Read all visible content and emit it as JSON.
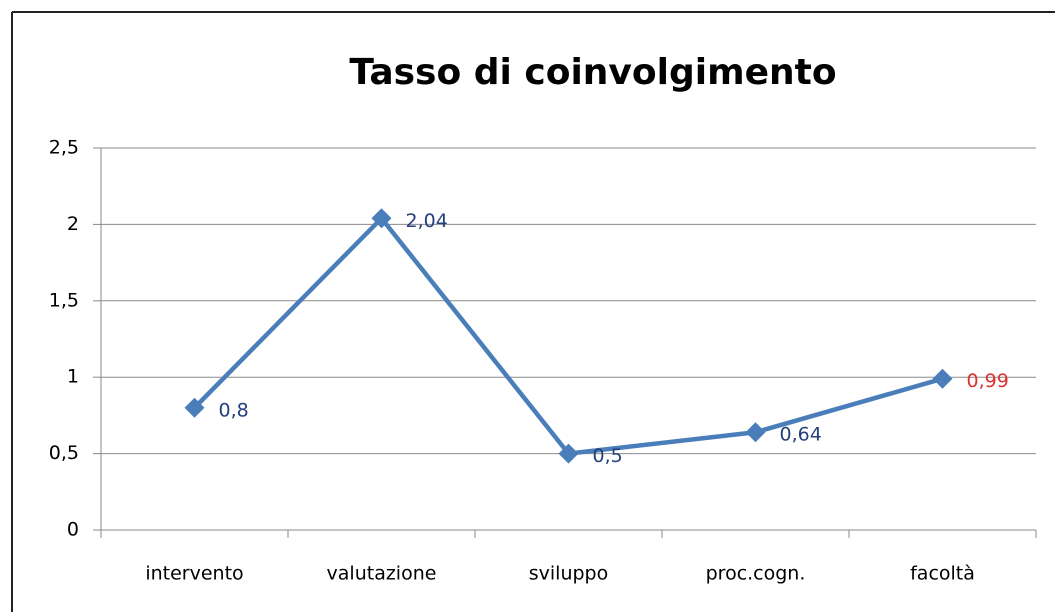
{
  "chart_data": {
    "type": "line",
    "title": "Tasso di coinvolgimento",
    "categories": [
      "intervento",
      "valutazione",
      "sviluppo",
      "proc.cogn.",
      "facoltà"
    ],
    "series": [
      {
        "name": "Tasso di coinvolgimento",
        "color": "#4a7ebb",
        "values": [
          0.8,
          2.04,
          0.5,
          0.64,
          0.99
        ],
        "value_labels": [
          "0,8",
          "2,04",
          "0,5",
          "0,64",
          "0,99"
        ],
        "value_label_colors": [
          "#243f7a",
          "#243f7a",
          "#243f7a",
          "#243f7a",
          "#e03030"
        ]
      }
    ],
    "ylim": [
      0,
      2.5
    ],
    "yticks": [
      0,
      {
        "value": 0.5,
        "label": "0,5"
      },
      1,
      {
        "value": 1.5,
        "label": "1,5"
      },
      2,
      {
        "value": 2.5,
        "label": "2,5"
      }
    ],
    "grid": true
  }
}
